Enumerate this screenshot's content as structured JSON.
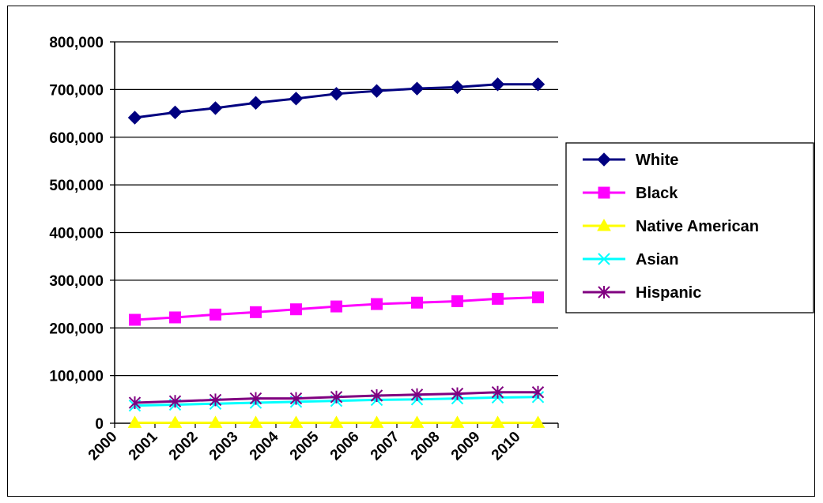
{
  "chart_data": {
    "type": "line",
    "title": "",
    "xlabel": "",
    "ylabel": "",
    "categories": [
      "2000",
      "2001",
      "2002",
      "2003",
      "2004",
      "2005",
      "2006",
      "2007",
      "2008",
      "2009",
      "2010"
    ],
    "ylim": [
      0,
      800000
    ],
    "y_ticks": [
      0,
      100000,
      200000,
      300000,
      400000,
      500000,
      600000,
      700000,
      800000
    ],
    "y_tick_labels": [
      "0",
      "100,000",
      "200,000",
      "300,000",
      "400,000",
      "500,000",
      "600,000",
      "700,000",
      "800,000"
    ],
    "grid": "horizontal",
    "legend_position": "right",
    "series": [
      {
        "name": "White",
        "color": "#000080",
        "marker": "diamond",
        "values": [
          641000,
          652000,
          661000,
          672000,
          681000,
          691000,
          697000,
          702000,
          705000,
          711000,
          711000
        ]
      },
      {
        "name": "Black",
        "color": "#FF00FF",
        "marker": "square",
        "values": [
          217000,
          222000,
          228000,
          233000,
          239000,
          245000,
          250000,
          253000,
          256000,
          261000,
          264000
        ]
      },
      {
        "name": "Native American",
        "color": "#FFFF00",
        "marker": "triangle",
        "values": [
          1000,
          1000,
          1000,
          1000,
          1000,
          1000,
          1000,
          1000,
          1000,
          1000,
          1000
        ]
      },
      {
        "name": "Asian",
        "color": "#00FFFF",
        "marker": "x",
        "values": [
          37000,
          39000,
          41000,
          43000,
          45000,
          47000,
          49000,
          50000,
          52000,
          54000,
          55000
        ]
      },
      {
        "name": "Hispanic",
        "color": "#800080",
        "marker": "star",
        "values": [
          43000,
          46000,
          49000,
          52000,
          52000,
          55000,
          58000,
          60000,
          62000,
          65000,
          65000
        ]
      }
    ]
  }
}
